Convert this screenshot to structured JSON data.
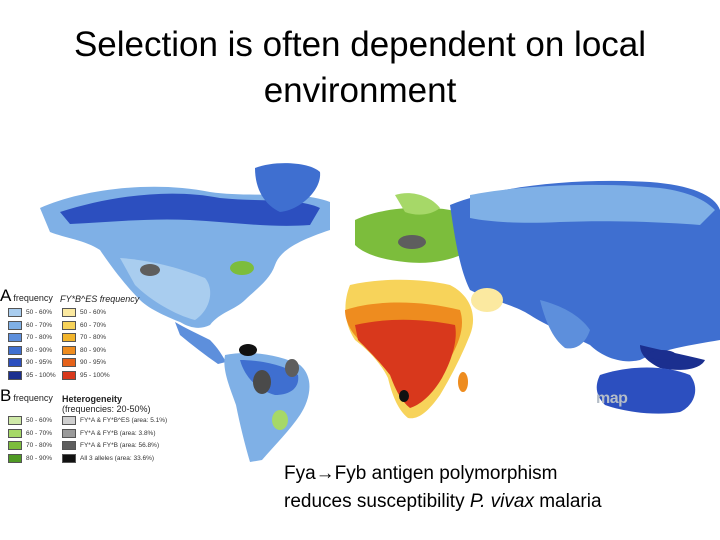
{
  "slide": {
    "title_line1": "Selection is often dependent on local",
    "title_line2": "environment",
    "caption_line1": "Fya→Fyb antigen polymorphism",
    "caption_line2_pre": "reduces susceptibility ",
    "caption_line2_italic": "P. vivax",
    "caption_line2_post": " malaria"
  },
  "legend": {
    "A_letter": "A",
    "A_label": "frequency",
    "A_col2_label": "FY*B^ES frequency",
    "A_items": [
      "50 - 60%",
      "60 - 70%",
      "70 - 80%",
      "80 - 90%",
      "90 - 95%",
      "95 - 100%"
    ],
    "A_colors": [
      "#a9cdef",
      "#7fb0e6",
      "#5d8fdc",
      "#3f6fd0",
      "#2c4fbf",
      "#1b2f8f"
    ],
    "A_col2_items": [
      "50 - 60%",
      "60 - 70%",
      "70 - 80%",
      "80 - 90%",
      "90 - 95%",
      "95 - 100%"
    ],
    "A_col2_colors": [
      "#fbe9a0",
      "#f7d35a",
      "#f2b52c",
      "#ee8c1f",
      "#e5621a",
      "#d8381c"
    ],
    "B_letter": "B",
    "B_label": "frequency",
    "B_col2_title1": "Heterogeneity",
    "B_col2_title2": "(frequencies: 20-50%)",
    "B_items": [
      "50 - 60%",
      "60 - 70%",
      "70 - 80%",
      "80 - 90%"
    ],
    "B_colors": [
      "#cfe9a8",
      "#a6d868",
      "#7cbd3c",
      "#4f9a24"
    ],
    "B_col2_items": [
      "FY*A & FY*B^ES (area: 5.1%)",
      "FY*A & FY*B (area: 3.8%)",
      "FY*A & FY*B (area: 56.8%)",
      "All 3 alleles (area: 33.6%)"
    ],
    "B_col2_colors": [
      "#cfcfcf",
      "#9a9a9a",
      "#5e5e5e",
      "#111111"
    ]
  },
  "watermark": "map",
  "colors": {
    "ocean": "#ffffff",
    "deep_blue": "#1b2f8f",
    "mid_blue": "#3f6fd0",
    "light_blue": "#7fb0e6",
    "pale_blue": "#a9cdef",
    "green": "#7cbd3c",
    "dark_green": "#4f9a24",
    "red": "#d8381c",
    "orange": "#ee8c1f",
    "yellow": "#f7d35a",
    "dark_gray": "#4a4a4a",
    "black": "#111111"
  }
}
